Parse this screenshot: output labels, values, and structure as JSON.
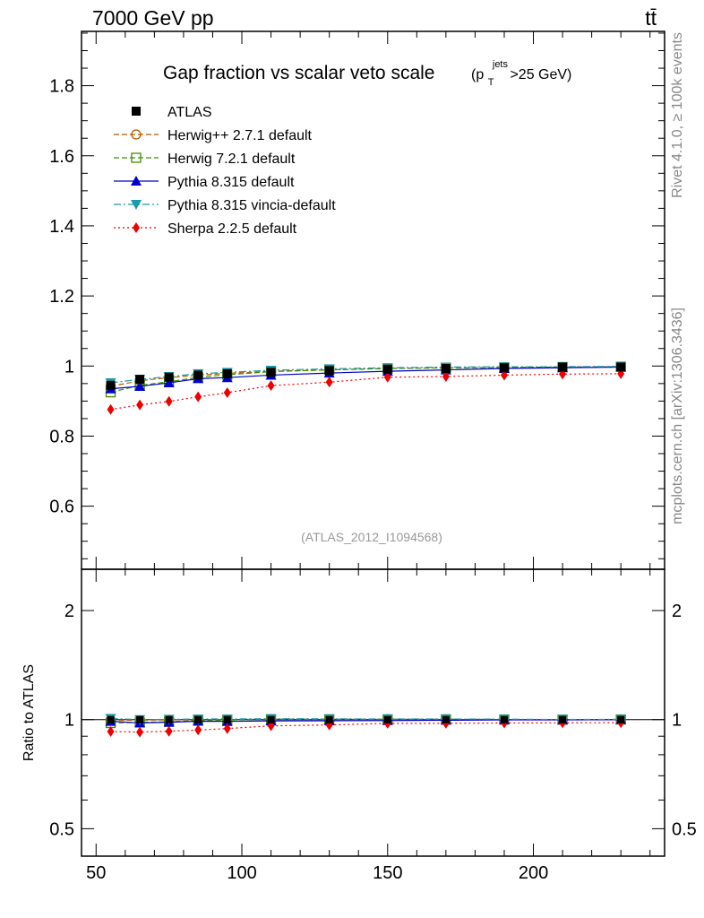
{
  "header": {
    "energy": "7000 GeV pp",
    "process": "tt̄"
  },
  "side_labels": {
    "rivet": "Rivet 4.1.0, ≥ 100k events",
    "mcplots": "mcplots.cern.ch [arXiv:1306.3436]"
  },
  "chart_data": {
    "type": "line",
    "title_main": "Gap fraction vs scalar veto scale",
    "title_sub_open": "(p",
    "title_sub_sup": "jets",
    "title_sub_sub": "T",
    "title_sub_close": ">25 GeV)",
    "analysis_id": "(ATLAS_2012_I1094568)",
    "xlim": [
      45,
      245
    ],
    "ylim": [
      0.42,
      1.955
    ],
    "ratio_ylim": [
      0.42,
      2.6
    ],
    "x_ticks": [
      50,
      100,
      150,
      200
    ],
    "y_ticks": [
      0.6,
      0.8,
      1,
      1.2,
      1.4,
      1.6,
      1.8
    ],
    "y_tick_labels": [
      "0.6",
      "0.8",
      "1",
      "1.2",
      "1.4",
      "1.6",
      "1.8"
    ],
    "ratio_ticks": [
      0.5,
      1,
      2
    ],
    "ratio_tick_labels": [
      "0.5",
      "1",
      "2"
    ],
    "ratio_ylabel": "Ratio to ATLAS",
    "x": [
      55,
      65,
      75,
      85,
      95,
      110,
      130,
      150,
      170,
      190,
      210,
      230
    ],
    "x_edges": [
      50,
      60,
      70,
      80,
      90,
      100,
      120,
      140,
      160,
      180,
      200,
      220,
      240
    ],
    "data": {
      "name": "ATLAS",
      "values": [
        0.945,
        0.962,
        0.968,
        0.974,
        0.978,
        0.982,
        0.987,
        0.991,
        0.993,
        0.995,
        0.997,
        0.997
      ],
      "errors": [
        0.012,
        0.01,
        0.009,
        0.008,
        0.007,
        0.006,
        0.005,
        0.004,
        0.003,
        0.003,
        0.003,
        0.003
      ]
    },
    "series": [
      {
        "name": "Herwig++ 2.7.1 default",
        "color": "#b35900",
        "marker": "circle-open",
        "dash": "6,3",
        "values": [
          0.942,
          0.958,
          0.967,
          0.974,
          0.979,
          0.985,
          0.989,
          0.993,
          0.995,
          0.996,
          0.997,
          0.998
        ]
      },
      {
        "name": "Herwig 7.2.1 default",
        "color": "#3f8f00",
        "marker": "square-open",
        "dash": "6,3",
        "values": [
          0.925,
          0.945,
          0.955,
          0.968,
          0.975,
          0.984,
          0.989,
          0.993,
          0.995,
          0.996,
          0.997,
          0.998
        ]
      },
      {
        "name": "Pythia 8.315 default",
        "color": "#0000cc",
        "marker": "triangle-up",
        "dash": "",
        "values": [
          0.935,
          0.942,
          0.952,
          0.964,
          0.967,
          0.974,
          0.98,
          0.985,
          0.989,
          0.993,
          0.995,
          0.997
        ]
      },
      {
        "name": "Pythia 8.315 vincia-default",
        "color": "#1a9aaa",
        "marker": "triangle-down",
        "dash": "8,3,2,3",
        "values": [
          0.952,
          0.962,
          0.97,
          0.978,
          0.982,
          0.988,
          0.992,
          0.995,
          0.997,
          0.998,
          0.998,
          0.999
        ]
      },
      {
        "name": "Sherpa 2.2.5 default",
        "color": "#ee0000",
        "marker": "diamond",
        "dash": "2,3",
        "values": [
          0.876,
          0.889,
          0.899,
          0.912,
          0.924,
          0.944,
          0.954,
          0.968,
          0.97,
          0.974,
          0.977,
          0.978
        ]
      }
    ]
  }
}
